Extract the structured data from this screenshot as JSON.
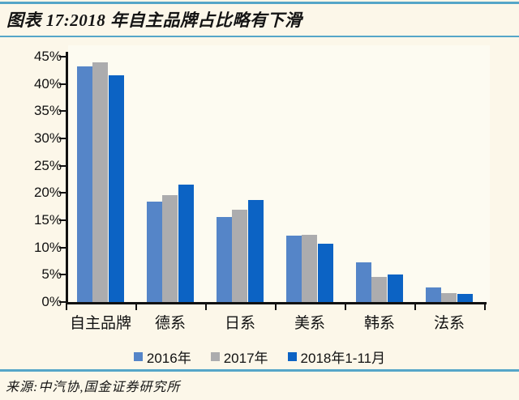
{
  "colors": {
    "page_bg": "#FCF7E9",
    "plot_bg": "#FDFBF1",
    "divider_line": "#55A6C8",
    "axis": "#111111",
    "series_2016": "#5585C8",
    "series_2017": "#ACACAE",
    "series_2018": "#0C63C4"
  },
  "header": {
    "title": "图表 17:2018 年自主品牌占比略有下滑"
  },
  "footer": {
    "source": "来源:中汽协,国金证券研究所"
  },
  "chart_data": {
    "type": "bar",
    "title": "2018 年自主品牌占比略有下滑",
    "categories": [
      "自主品牌",
      "德系",
      "日系",
      "美系",
      "韩系",
      "法系"
    ],
    "series": [
      {
        "name": "2016年",
        "color": "#5585C8",
        "values": [
          43.2,
          18.4,
          15.6,
          12.2,
          7.3,
          2.6
        ]
      },
      {
        "name": "2017年",
        "color": "#ACACAE",
        "values": [
          43.9,
          19.6,
          17.0,
          12.3,
          4.6,
          1.7
        ]
      },
      {
        "name": "2018年1-11月",
        "color": "#0C63C4",
        "values": [
          41.6,
          21.5,
          18.7,
          10.7,
          5.1,
          1.5
        ]
      }
    ],
    "xlabel": "",
    "ylabel": "",
    "ylim": [
      0,
      45
    ],
    "ytick_step": 5,
    "yticks": [
      "45%",
      "40%",
      "35%",
      "30%",
      "25%",
      "20%",
      "15%",
      "10%",
      "5%",
      "0%"
    ],
    "grid": false,
    "legend_position": "bottom"
  }
}
